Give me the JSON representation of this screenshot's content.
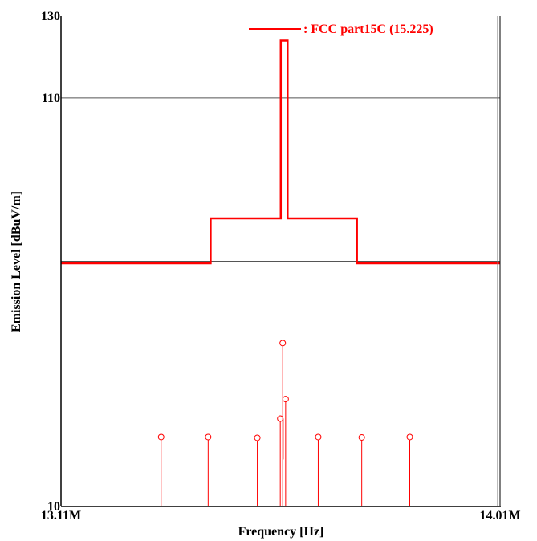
{
  "chart_data": {
    "type": "line",
    "title": "",
    "xlabel": "Frequency [Hz]",
    "ylabel": "Emission Level [dBuV/m]",
    "x_scale": "log",
    "xlim": [
      13110000,
      14010000
    ],
    "ylim": [
      10,
      130
    ],
    "x_tick_labels": [
      "13.11M",
      "14.01M"
    ],
    "y_ticks": [
      10,
      110,
      130
    ],
    "grid": true,
    "legend": {
      "placement": "top-right",
      "entries": [
        {
          "label": ": FCC part15C (15.225)",
          "color": "#ff0000"
        }
      ]
    },
    "series": [
      {
        "name": ": FCC part15C (15.225)",
        "kind": "step-line",
        "color": "#ff0000",
        "x": [
          13110000,
          13410000,
          13410000,
          13553000,
          13553000,
          13567000,
          13567000,
          13710000,
          13710000,
          14010000
        ],
        "y": [
          69.5,
          69.5,
          80.5,
          80.5,
          124,
          124,
          80.5,
          80.5,
          69.5,
          69.5
        ]
      },
      {
        "kind": "stem",
        "color": "#ff0000",
        "x": [
          13310000,
          13405000,
          13505000,
          13552000,
          13557000,
          13563000,
          13630000,
          13720000,
          13820000
        ],
        "y": [
          27,
          27,
          26.8,
          31.5,
          50,
          36.3,
          27,
          26.9,
          27
        ]
      }
    ],
    "extra_stem": {
      "x": 13558000,
      "y_top": 31.5,
      "y_bottom": 21.5
    }
  }
}
